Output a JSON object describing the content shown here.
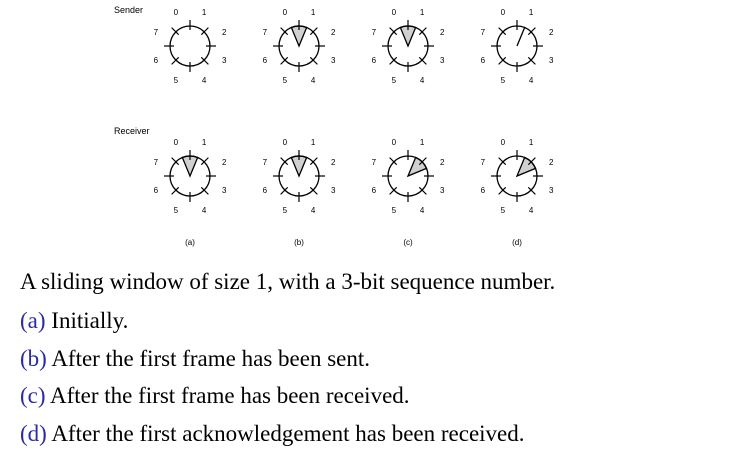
{
  "rows": [
    {
      "label": "Sender",
      "wheels": [
        {
          "shade": null,
          "pointer": null
        },
        {
          "shade": [
            0,
            1
          ],
          "pointer": null
        },
        {
          "shade": [
            0,
            1
          ],
          "pointer": null
        },
        {
          "shade": null,
          "pointer": 1
        }
      ]
    },
    {
      "label": "Receiver",
      "wheels": [
        {
          "shade": [
            0,
            1
          ],
          "pointer": null
        },
        {
          "shade": [
            0,
            1
          ],
          "pointer": null
        },
        {
          "shade": [
            1,
            2
          ],
          "pointer": null
        },
        {
          "shade": [
            1,
            2
          ],
          "pointer": null
        }
      ]
    }
  ],
  "sequence_numbers": [
    "0",
    "1",
    "2",
    "3",
    "4",
    "5",
    "6",
    "7"
  ],
  "sub_labels": [
    "(a)",
    "(b)",
    "(c)",
    "(d)"
  ],
  "caption": {
    "main": "A sliding window of size 1, with a 3-bit sequence number.",
    "items": [
      {
        "key": "(a)",
        "text": "Initially."
      },
      {
        "key": "(b)",
        "text": "After the first frame has been sent."
      },
      {
        "key": "(c)",
        "text": "After the first frame has been received."
      },
      {
        "key": "(d)",
        "text": "After the first acknowledgement has been received."
      }
    ]
  },
  "colors": {
    "shade": "#d0d0d0",
    "line": "#000000",
    "caption_key": "#2a2aa8"
  }
}
